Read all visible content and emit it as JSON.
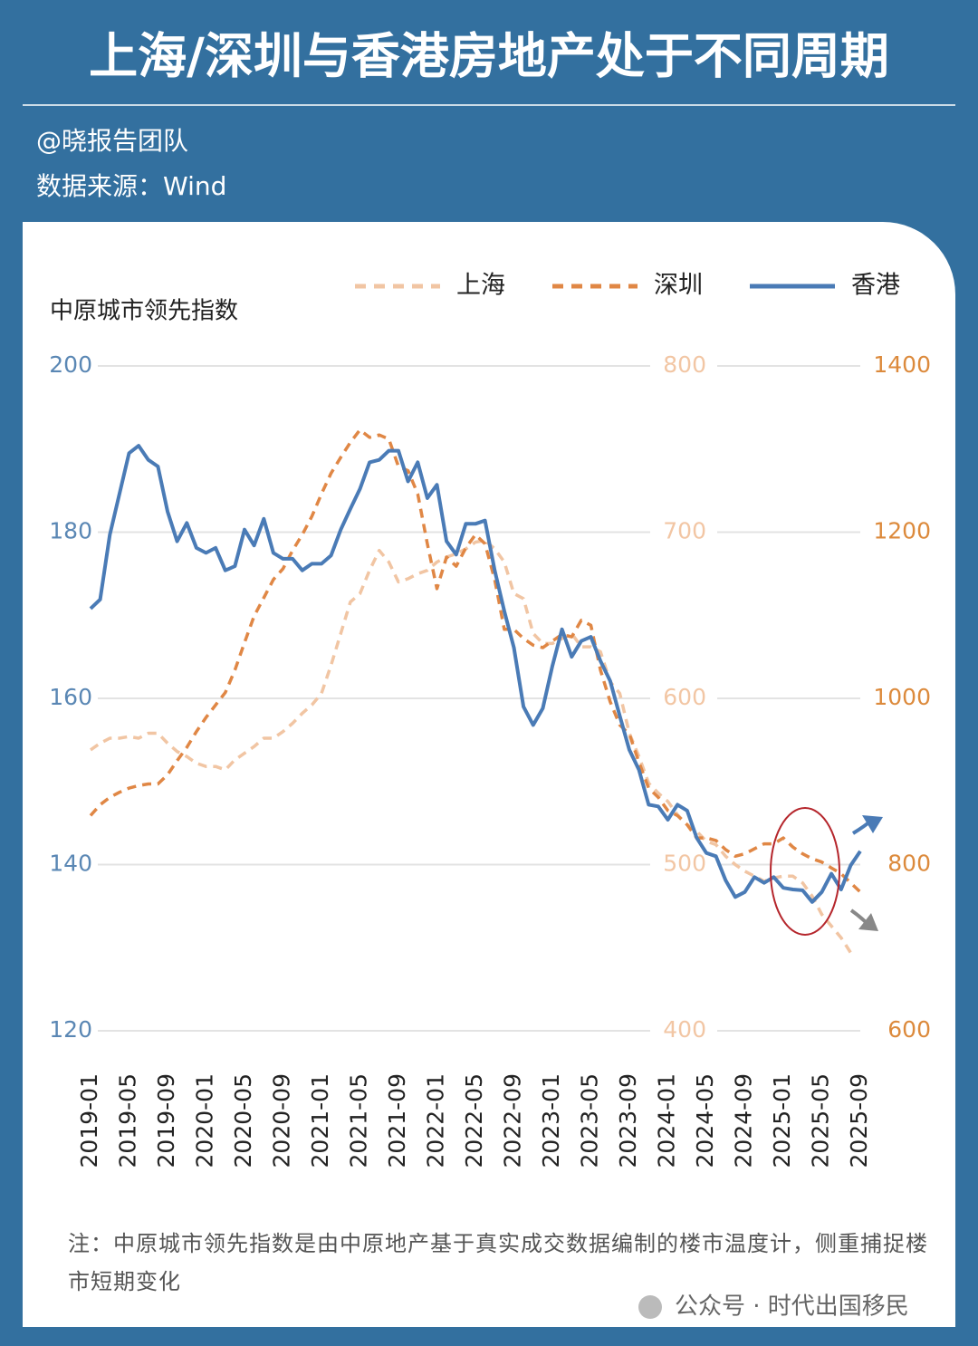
{
  "header": {
    "title": "上海/深圳与香港房地产处于不同周期",
    "author": "@晓报告团队",
    "source": "数据来源：Wind"
  },
  "chart_data": {
    "type": "line",
    "y_label": "中原城市领先指数",
    "x": [
      "2019-01",
      "2019-02",
      "2019-03",
      "2019-04",
      "2019-05",
      "2019-06",
      "2019-07",
      "2019-08",
      "2019-09",
      "2019-10",
      "2019-11",
      "2019-12",
      "2020-01",
      "2020-02",
      "2020-03",
      "2020-04",
      "2020-05",
      "2020-06",
      "2020-07",
      "2020-08",
      "2020-09",
      "2020-10",
      "2020-11",
      "2020-12",
      "2021-01",
      "2021-02",
      "2021-03",
      "2021-04",
      "2021-05",
      "2021-06",
      "2021-07",
      "2021-08",
      "2021-09",
      "2021-10",
      "2021-11",
      "2021-12",
      "2022-01",
      "2022-02",
      "2022-03",
      "2022-04",
      "2022-05",
      "2022-06",
      "2022-07",
      "2022-08",
      "2022-09",
      "2022-10",
      "2022-11",
      "2022-12",
      "2023-01",
      "2023-02",
      "2023-03",
      "2023-04",
      "2023-05",
      "2023-06",
      "2023-07",
      "2023-08",
      "2023-09",
      "2023-10",
      "2023-11",
      "2023-12",
      "2024-01",
      "2024-02",
      "2024-03",
      "2024-04",
      "2024-05",
      "2024-06",
      "2024-07",
      "2024-08",
      "2024-09",
      "2024-10",
      "2024-11",
      "2024-12",
      "2025-01",
      "2025-02",
      "2025-03",
      "2025-04",
      "2025-05",
      "2025-06",
      "2025-07",
      "2025-08",
      "2025-09"
    ],
    "xticks": [
      "2019-01",
      "2019-05",
      "2019-09",
      "2020-01",
      "2020-05",
      "2020-09",
      "2021-01",
      "2021-05",
      "2021-09",
      "2022-01",
      "2022-05",
      "2022-09",
      "2023-01",
      "2023-05",
      "2023-09",
      "2024-01",
      "2024-05",
      "2024-09",
      "2025-01",
      "2025-05",
      "2025-09"
    ],
    "ylim": [
      120,
      200
    ],
    "yticks": [
      120,
      140,
      160,
      180,
      200
    ],
    "y2lim": [
      400,
      800
    ],
    "y2ticks": [
      400,
      500,
      600,
      700,
      800
    ],
    "y3lim": [
      600,
      1400
    ],
    "y3ticks": [
      600,
      800,
      1000,
      1200,
      1400
    ],
    "grid": true,
    "legend": "top-right",
    "series": [
      {
        "name": "上海",
        "color": "#f1c5a3",
        "axis": "y2",
        "linestyle": "dashed",
        "values": [
          569,
          573,
          576,
          576,
          577,
          576,
          579,
          579,
          573,
          568,
          565,
          561,
          559,
          559,
          557,
          563,
          567,
          571,
          576,
          576,
          580,
          585,
          591,
          596,
          603,
          620,
          639,
          658,
          663,
          677,
          689,
          682,
          670,
          672,
          675,
          677,
          682,
          685,
          687,
          690,
          694,
          695,
          690,
          682,
          663,
          660,
          639,
          633,
          633,
          636,
          639,
          631,
          631,
          628,
          610,
          603,
          579,
          565,
          549,
          543,
          538,
          530,
          524,
          520,
          514,
          512,
          505,
          500,
          496,
          493,
          490,
          492,
          493,
          493,
          489,
          481,
          470,
          463,
          456,
          447,
          null
        ]
      },
      {
        "name": "深圳",
        "color": "#e08745",
        "axis": "y3",
        "linestyle": "dashed",
        "values": [
          859,
          872,
          881,
          887,
          892,
          895,
          897,
          897,
          908,
          925,
          941,
          960,
          977,
          992,
          1007,
          1034,
          1067,
          1099,
          1121,
          1143,
          1156,
          1178,
          1197,
          1219,
          1246,
          1271,
          1290,
          1308,
          1323,
          1314,
          1317,
          1312,
          1279,
          1274,
          1246,
          1186,
          1132,
          1170,
          1159,
          1181,
          1197,
          1186,
          1143,
          1083,
          1083,
          1072,
          1064,
          1061,
          1069,
          1077,
          1074,
          1094,
          1088,
          1034,
          996,
          968,
          957,
          923,
          892,
          881,
          865,
          859,
          848,
          832,
          832,
          829,
          818,
          810,
          813,
          819,
          825,
          825,
          832,
          821,
          813,
          807,
          803,
          796,
          789,
          778,
          767
        ]
      },
      {
        "name": "香港",
        "color": "#4a7bb6",
        "axis": "y",
        "linestyle": "solid",
        "values": [
          170.8,
          171.9,
          179.7,
          184.6,
          189.5,
          190.4,
          188.7,
          187.9,
          182.5,
          178.9,
          181.1,
          178.1,
          177.5,
          178.1,
          175.4,
          175.9,
          180.3,
          178.4,
          181.6,
          177.5,
          176.8,
          176.8,
          175.4,
          176.2,
          176.2,
          177.2,
          180.3,
          182.8,
          185.2,
          188.4,
          188.7,
          189.8,
          189.8,
          186.1,
          188.4,
          184.1,
          185.7,
          178.9,
          177.3,
          181.0,
          181.0,
          181.4,
          175.4,
          170.5,
          166.1,
          159.0,
          156.8,
          158.8,
          163.9,
          168.3,
          165.0,
          166.9,
          167.4,
          164.5,
          162.1,
          157.9,
          153.8,
          151.4,
          147.2,
          147.0,
          145.4,
          147.2,
          146.5,
          143.2,
          141.4,
          141.0,
          138.1,
          136.1,
          136.7,
          138.5,
          137.8,
          138.5,
          137.2,
          137.0,
          136.9,
          135.5,
          136.7,
          138.9,
          137.0,
          139.9,
          141.6
        ]
      }
    ],
    "note": "注：中原城市领先指数是由中原地产基于真实成交数据编制的楼市温度计，侧重捕捉楼市短期变化",
    "watermark": "公众号 · 时代出国移民"
  }
}
